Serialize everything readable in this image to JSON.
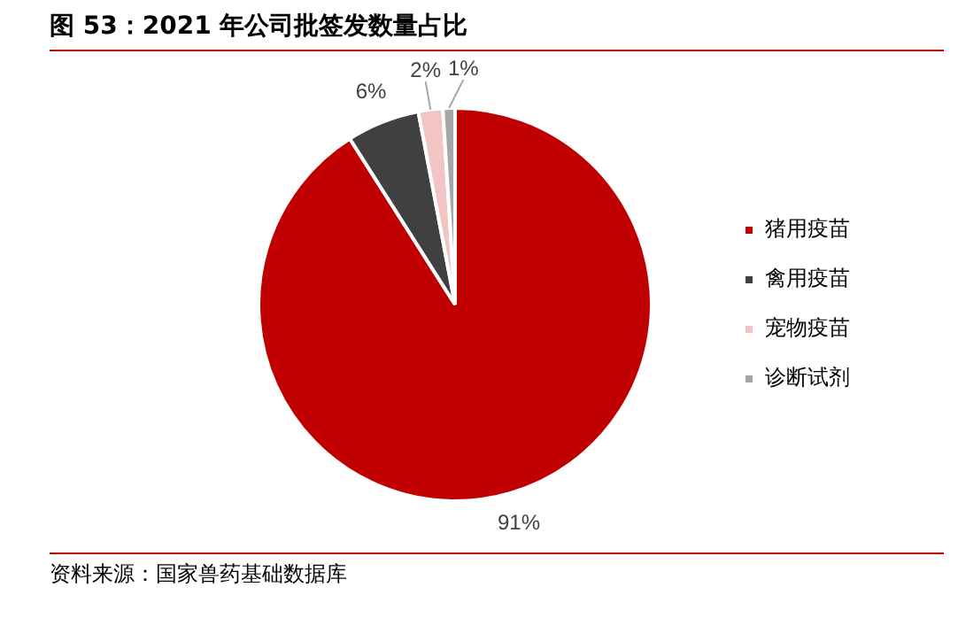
{
  "chart_data": {
    "type": "pie",
    "title": "图 53：2021 年公司批签发数量占比",
    "categories": [
      "猪用疫苗",
      "禽用疫苗",
      "宠物疫苗",
      "诊断试剂"
    ],
    "values": [
      91,
      6,
      2,
      1
    ],
    "colors": [
      "#c00000",
      "#404040",
      "#f2c4c4",
      "#a6a6a6"
    ],
    "value_labels": [
      "91%",
      "6%",
      "2%",
      "1%"
    ],
    "legend": "right",
    "annotations": [
      "资料来源：国家兽药基础数据库"
    ]
  }
}
